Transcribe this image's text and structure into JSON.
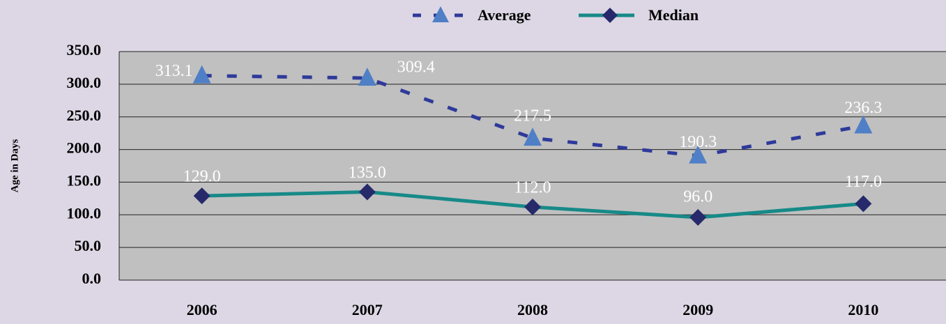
{
  "chart_data": {
    "type": "line",
    "y_label": "Age in Days",
    "categories": [
      "2006",
      "2007",
      "2008",
      "2009",
      "2010"
    ],
    "series": [
      {
        "name": "Average",
        "color": "#4f7fc6",
        "line_color": "#2e3a9a",
        "line_style": "dashed",
        "marker": "triangle",
        "values": [
          313.1,
          309.4,
          217.5,
          190.3,
          236.3
        ],
        "value_labels": [
          "313.1",
          "309.4",
          "217.5",
          "190.3",
          "236.3"
        ]
      },
      {
        "name": "Median",
        "color": "#262a6b",
        "line_color": "#178a88",
        "line_style": "solid",
        "marker": "diamond",
        "values": [
          129,
          135,
          112,
          96,
          117
        ],
        "value_labels": [
          "129.0",
          "135.0",
          "112.0",
          "96.0",
          "117.0"
        ]
      }
    ],
    "ylim": [
      0,
      350
    ],
    "yticks": [
      {
        "value": 0,
        "label": "0.0"
      },
      {
        "value": 50,
        "label": "50.0"
      },
      {
        "value": 100,
        "label": "100.0"
      },
      {
        "value": 150,
        "label": "150.0"
      },
      {
        "value": 200,
        "label": "200.0"
      },
      {
        "value": 250,
        "label": "250.0"
      },
      {
        "value": 300,
        "label": "300.0"
      },
      {
        "value": 350,
        "label": "350.0"
      }
    ],
    "grid": true,
    "legend": "top"
  }
}
